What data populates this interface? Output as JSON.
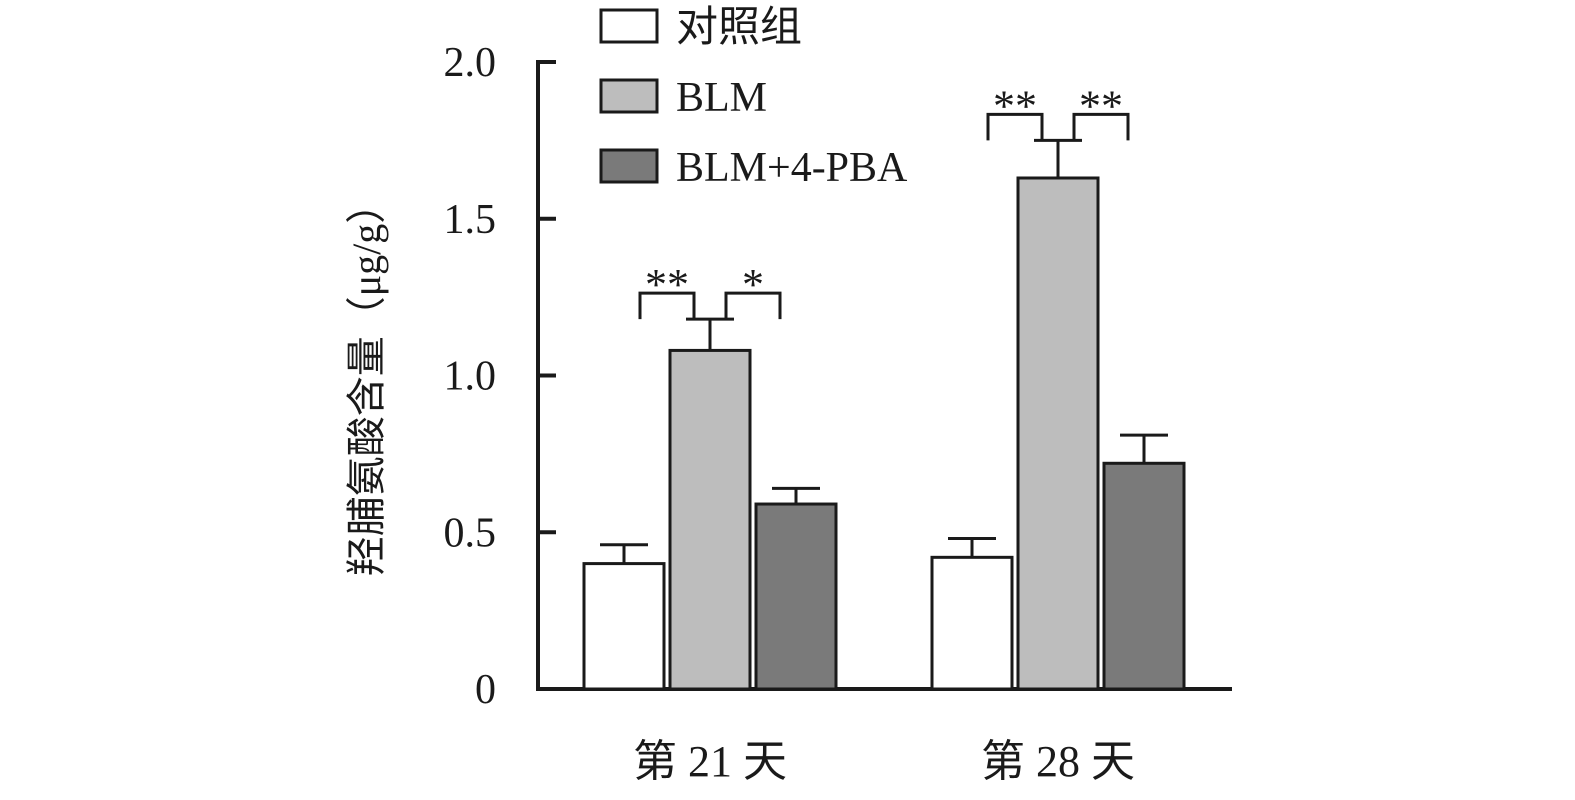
{
  "chart_data": {
    "type": "bar",
    "title": "",
    "xlabel": "",
    "ylabel": "羟脯氨酸含量（μg/g）",
    "ylim": [
      0,
      2.0
    ],
    "yticks": [
      {
        "value": 0,
        "label": "0"
      },
      {
        "value": 0.5,
        "label": "0.5"
      },
      {
        "value": 1.0,
        "label": "1.0"
      },
      {
        "value": 1.5,
        "label": "1.5"
      },
      {
        "value": 2.0,
        "label": "2.0"
      }
    ],
    "categories": [
      "第 21 天",
      "第 28 天"
    ],
    "series": [
      {
        "name": "对照组",
        "color": "#ffffff",
        "values": [
          0.4,
          0.42
        ],
        "errors": [
          0.06,
          0.06
        ]
      },
      {
        "name": "BLM",
        "color": "#bdbdbd",
        "values": [
          1.08,
          1.63
        ],
        "errors": [
          0.1,
          0.12
        ]
      },
      {
        "name": "BLM+4-PBA",
        "color": "#7a7a7a",
        "values": [
          0.59,
          0.72
        ],
        "errors": [
          0.05,
          0.09
        ]
      }
    ],
    "legend_position": "top",
    "grid": false,
    "significance": [
      {
        "category": 0,
        "from": 0,
        "to": 1,
        "label": "**"
      },
      {
        "category": 0,
        "from": 1,
        "to": 2,
        "label": "*"
      },
      {
        "category": 1,
        "from": 0,
        "to": 1,
        "label": "**"
      },
      {
        "category": 1,
        "from": 1,
        "to": 2,
        "label": "**"
      }
    ]
  }
}
